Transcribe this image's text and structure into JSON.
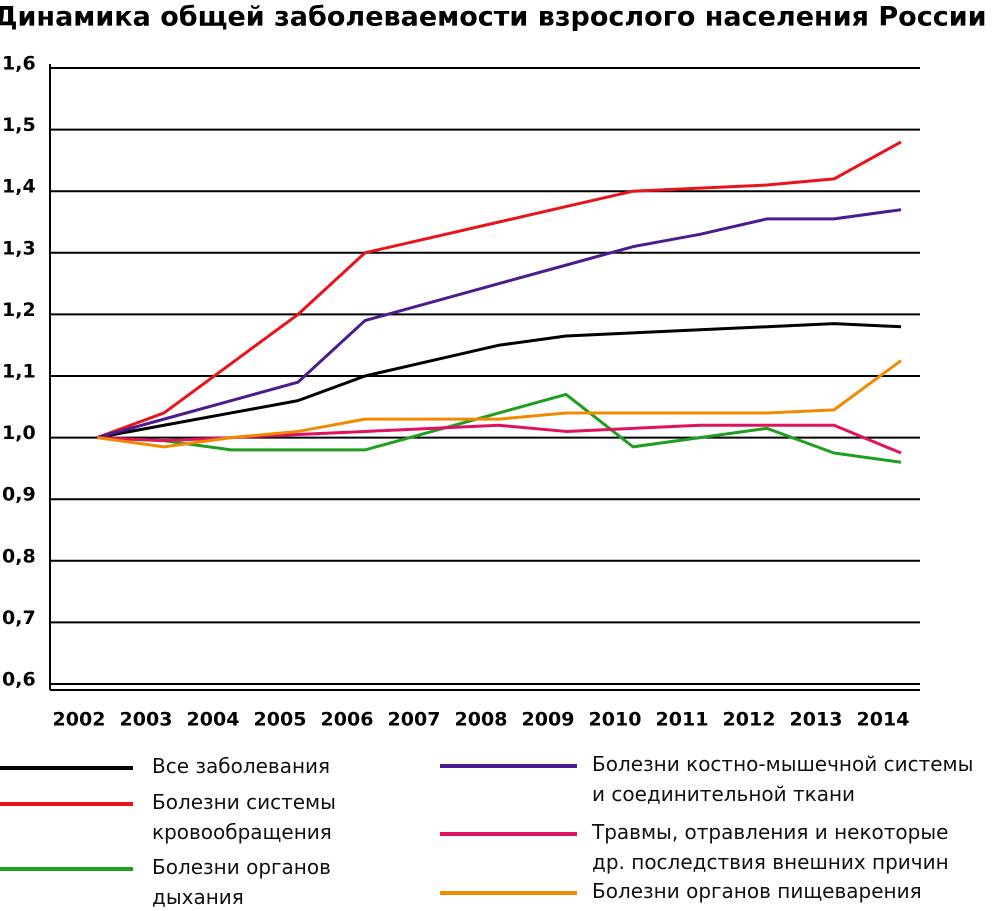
{
  "chart_data": {
    "type": "line",
    "title": "Динамика общей заболеваемости взрослого населения России",
    "categories": [
      "2002",
      "2003",
      "2004",
      "2005",
      "2006",
      "2007",
      "2008",
      "2009",
      "2010",
      "2011",
      "2012",
      "2013",
      "2014"
    ],
    "series": [
      {
        "name": "Все заболевания",
        "color": "#000000",
        "values": [
          1.0,
          1.02,
          1.04,
          1.06,
          1.1,
          1.125,
          1.15,
          1.165,
          1.17,
          1.175,
          1.18,
          1.185,
          1.18
        ]
      },
      {
        "name": "Болезни системы\nкровообращения",
        "color": "#e8141b",
        "values": [
          1.0,
          1.04,
          1.12,
          1.2,
          1.3,
          1.325,
          1.35,
          1.375,
          1.4,
          1.405,
          1.41,
          1.42,
          1.48
        ]
      },
      {
        "name": "Болезни органов\nдыхания",
        "color": "#1f9e1f",
        "values": [
          1.0,
          0.995,
          0.98,
          0.98,
          0.98,
          1.01,
          1.04,
          1.07,
          0.985,
          1.0,
          1.015,
          0.975,
          0.96
        ]
      },
      {
        "name": "Болезни костно-мышечной системы\nи соединительной ткани",
        "color": "#4b1c8f",
        "values": [
          1.0,
          1.03,
          1.06,
          1.09,
          1.19,
          1.22,
          1.25,
          1.28,
          1.31,
          1.33,
          1.355,
          1.355,
          1.37
        ]
      },
      {
        "name": "Травмы, отравления и некоторые\nдр. последствия внешних причин",
        "color": "#e0115f",
        "values": [
          1.0,
          0.995,
          1.0,
          1.005,
          1.01,
          1.015,
          1.02,
          1.01,
          1.015,
          1.02,
          1.02,
          1.02,
          0.975
        ]
      },
      {
        "name": "Болезни органов пищеварения",
        "color": "#f08a00",
        "values": [
          1.0,
          0.985,
          1.0,
          1.01,
          1.03,
          1.03,
          1.03,
          1.04,
          1.04,
          1.04,
          1.04,
          1.045,
          1.125
        ]
      }
    ],
    "ylim": [
      0.6,
      1.6
    ],
    "yticks": [
      {
        "value": 0.6,
        "label": "0,6"
      },
      {
        "value": 0.7,
        "label": "0,7"
      },
      {
        "value": 0.8,
        "label": "0,8"
      },
      {
        "value": 0.9,
        "label": "0,9"
      },
      {
        "value": 1.0,
        "label": "1,0"
      },
      {
        "value": 1.1,
        "label": "1,1"
      },
      {
        "value": 1.2,
        "label": "1,2"
      },
      {
        "value": 1.3,
        "label": "1,3"
      },
      {
        "value": 1.4,
        "label": "1,4"
      },
      {
        "value": 1.5,
        "label": "1,5"
      },
      {
        "value": 1.6,
        "label": "1,6"
      }
    ],
    "grid": true
  }
}
